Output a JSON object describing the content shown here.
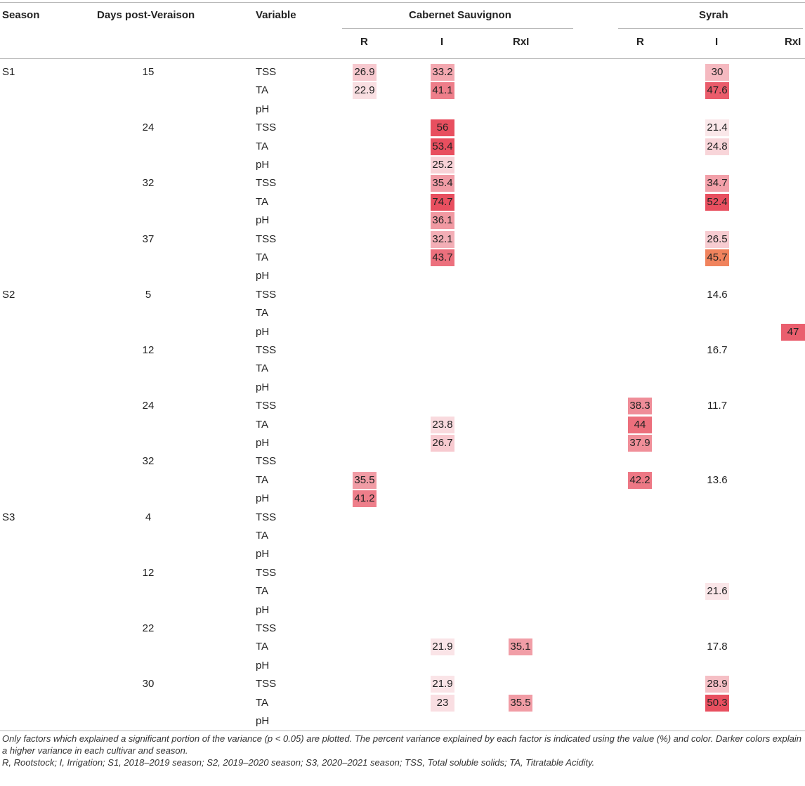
{
  "headers": {
    "season": "Season",
    "days": "Days post-Veraison",
    "variable": "Variable",
    "cultivar_cs": "Cabernet Sauvignon",
    "cultivar_sy": "Syrah",
    "cs_factors": [
      "R",
      "I",
      "RxI"
    ],
    "sy_factors": [
      "R",
      "I",
      "RxI"
    ]
  },
  "blocks": [
    {
      "season": "S1",
      "days": "15",
      "rows": [
        {
          "var": "TSS",
          "cs": [
            "26.9",
            "33.2",
            ""
          ],
          "sy": [
            "",
            "30",
            ""
          ]
        },
        {
          "var": "TA",
          "cs": [
            "22.9",
            "41.1",
            ""
          ],
          "sy": [
            "",
            "47.6",
            ""
          ]
        },
        {
          "var": "pH",
          "cs": [
            "",
            "",
            ""
          ],
          "sy": [
            "",
            "",
            ""
          ]
        }
      ]
    },
    {
      "season": "",
      "days": "24",
      "rows": [
        {
          "var": "TSS",
          "cs": [
            "",
            "56",
            ""
          ],
          "sy": [
            "",
            "21.4",
            ""
          ]
        },
        {
          "var": "TA",
          "cs": [
            "",
            "53.4",
            ""
          ],
          "sy": [
            "",
            "24.8",
            ""
          ]
        },
        {
          "var": "pH",
          "cs": [
            "",
            "25.2",
            ""
          ],
          "sy": [
            "",
            "",
            ""
          ]
        }
      ]
    },
    {
      "season": "",
      "days": "32",
      "rows": [
        {
          "var": "TSS",
          "cs": [
            "",
            "35.4",
            ""
          ],
          "sy": [
            "",
            "34.7",
            ""
          ]
        },
        {
          "var": "TA",
          "cs": [
            "",
            "74.7",
            ""
          ],
          "sy": [
            "",
            "52.4",
            ""
          ]
        },
        {
          "var": "pH",
          "cs": [
            "",
            "36.1",
            ""
          ],
          "sy": [
            "",
            "",
            ""
          ]
        }
      ]
    },
    {
      "season": "",
      "days": "37",
      "rows": [
        {
          "var": "TSS",
          "cs": [
            "",
            "32.1",
            ""
          ],
          "sy": [
            "",
            "26.5",
            ""
          ]
        },
        {
          "var": "TA",
          "cs": [
            "",
            "43.7",
            ""
          ],
          "sy": [
            "",
            "45.7",
            ""
          ]
        },
        {
          "var": "pH",
          "cs": [
            "",
            "",
            ""
          ],
          "sy": [
            "",
            "",
            ""
          ]
        }
      ]
    },
    {
      "season": "S2",
      "days": "5",
      "rows": [
        {
          "var": "TSS",
          "cs": [
            "",
            "",
            ""
          ],
          "sy": [
            "",
            "14.6",
            ""
          ]
        },
        {
          "var": "TA",
          "cs": [
            "",
            "",
            ""
          ],
          "sy": [
            "",
            "",
            ""
          ]
        },
        {
          "var": "pH",
          "cs": [
            "",
            "",
            ""
          ],
          "sy": [
            "",
            "",
            "47"
          ]
        }
      ]
    },
    {
      "season": "",
      "days": "12",
      "rows": [
        {
          "var": "TSS",
          "cs": [
            "",
            "",
            ""
          ],
          "sy": [
            "",
            "16.7",
            ""
          ]
        },
        {
          "var": "TA",
          "cs": [
            "",
            "",
            ""
          ],
          "sy": [
            "",
            "",
            ""
          ]
        },
        {
          "var": "pH",
          "cs": [
            "",
            "",
            ""
          ],
          "sy": [
            "",
            "",
            ""
          ]
        }
      ]
    },
    {
      "season": "",
      "days": "24",
      "rows": [
        {
          "var": "TSS",
          "cs": [
            "",
            "",
            ""
          ],
          "sy": [
            "38.3",
            "11.7",
            ""
          ]
        },
        {
          "var": "TA",
          "cs": [
            "",
            "23.8",
            ""
          ],
          "sy": [
            "44",
            "",
            ""
          ]
        },
        {
          "var": "pH",
          "cs": [
            "",
            "26.7",
            ""
          ],
          "sy": [
            "37.9",
            "",
            ""
          ]
        }
      ]
    },
    {
      "season": "",
      "days": "32",
      "rows": [
        {
          "var": "TSS",
          "cs": [
            "",
            "",
            ""
          ],
          "sy": [
            "",
            "",
            ""
          ]
        },
        {
          "var": "TA",
          "cs": [
            "35.5",
            "",
            ""
          ],
          "sy": [
            "42.2",
            "13.6",
            ""
          ]
        },
        {
          "var": "pH",
          "cs": [
            "41.2",
            "",
            ""
          ],
          "sy": [
            "",
            "",
            ""
          ]
        }
      ]
    },
    {
      "season": "S3",
      "days": "4",
      "rows": [
        {
          "var": "TSS",
          "cs": [
            "",
            "",
            ""
          ],
          "sy": [
            "",
            "",
            ""
          ]
        },
        {
          "var": "TA",
          "cs": [
            "",
            "",
            ""
          ],
          "sy": [
            "",
            "",
            ""
          ]
        },
        {
          "var": "pH",
          "cs": [
            "",
            "",
            ""
          ],
          "sy": [
            "",
            "",
            ""
          ]
        }
      ]
    },
    {
      "season": "",
      "days": "12",
      "rows": [
        {
          "var": "TSS",
          "cs": [
            "",
            "",
            ""
          ],
          "sy": [
            "",
            "",
            ""
          ]
        },
        {
          "var": "TA",
          "cs": [
            "",
            "",
            ""
          ],
          "sy": [
            "",
            "21.6",
            ""
          ]
        },
        {
          "var": "pH",
          "cs": [
            "",
            "",
            ""
          ],
          "sy": [
            "",
            "",
            ""
          ]
        }
      ]
    },
    {
      "season": "",
      "days": "22",
      "rows": [
        {
          "var": "TSS",
          "cs": [
            "",
            "",
            ""
          ],
          "sy": [
            "",
            "",
            ""
          ]
        },
        {
          "var": "TA",
          "cs": [
            "",
            "21.9",
            "35.1"
          ],
          "sy": [
            "",
            "17.8",
            ""
          ]
        },
        {
          "var": "pH",
          "cs": [
            "",
            "",
            ""
          ],
          "sy": [
            "",
            "",
            ""
          ]
        }
      ]
    },
    {
      "season": "",
      "days": "30",
      "rows": [
        {
          "var": "TSS",
          "cs": [
            "",
            "21.9",
            ""
          ],
          "sy": [
            "",
            "28.9",
            ""
          ]
        },
        {
          "var": "TA",
          "cs": [
            "",
            "23",
            "35.5"
          ],
          "sy": [
            "",
            "50.3",
            ""
          ]
        },
        {
          "var": "pH",
          "cs": [
            "",
            "",
            ""
          ],
          "sy": [
            "",
            "",
            ""
          ]
        }
      ]
    }
  ],
  "notes": [
    "Only factors which explained a significant portion of the variance (p < 0.05) are plotted. The percent variance explained by each factor is indicated using the value (%) and color. Darker colors explain a higher variance in each cultivar and season.",
    "R, Rootstock; I, Irrigation; S1, 2018–2019 season; S2, 2019–2020 season; S3, 2020–2021 season; TSS, Total soluble solids; TA, Titratable Acidity."
  ],
  "colors": {
    "low": "#fbeef0",
    "high": "#e84f5f",
    "orange_tint": "#ef7d55"
  }
}
